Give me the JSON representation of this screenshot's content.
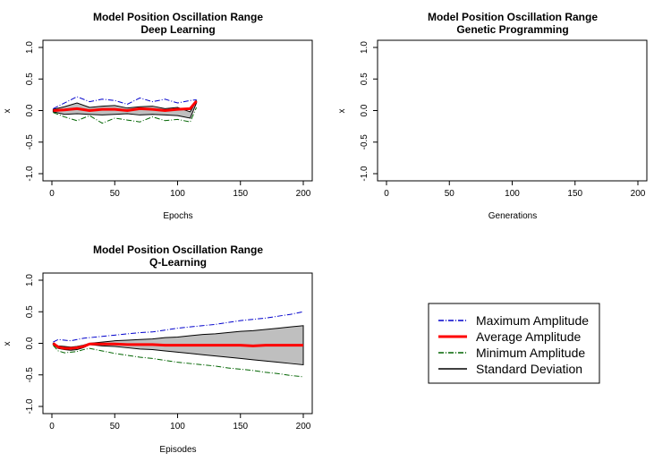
{
  "chart_data": [
    {
      "type": "line",
      "title": "Model Position Oscillation Range",
      "subtitle": "Deep Learning",
      "xlabel": "Epochs",
      "ylabel": "x",
      "xlim": [
        0,
        200
      ],
      "ylim": [
        -1.0,
        1.0
      ],
      "xticks": [
        "0",
        "50",
        "100",
        "150",
        "200"
      ],
      "yticks": [
        "-1.0",
        "-0.5",
        "0.0",
        "0.5",
        "1.0"
      ],
      "x": [
        1,
        10,
        20,
        30,
        40,
        50,
        60,
        70,
        80,
        90,
        100,
        110,
        115
      ],
      "std_band": {
        "upper": [
          0.02,
          0.06,
          0.12,
          0.05,
          0.07,
          0.08,
          0.04,
          0.06,
          0.07,
          0.03,
          0.05,
          -0.02,
          0.15
        ],
        "lower": [
          -0.02,
          -0.06,
          -0.05,
          -0.06,
          -0.07,
          -0.06,
          -0.05,
          -0.07,
          -0.06,
          -0.07,
          -0.08,
          -0.12,
          0.12
        ]
      },
      "series": [
        {
          "name": "Maximum Amplitude",
          "color": "#0000cc",
          "dash": "dashdot",
          "values": [
            0.03,
            0.12,
            0.22,
            0.14,
            0.18,
            0.16,
            0.1,
            0.2,
            0.14,
            0.18,
            0.12,
            0.16,
            0.17
          ]
        },
        {
          "name": "Average Amplitude",
          "color": "#ff0000",
          "dash": "solid",
          "values": [
            0.0,
            0.01,
            0.03,
            0.0,
            0.02,
            0.02,
            0.0,
            0.03,
            0.02,
            0.0,
            0.02,
            0.03,
            0.15
          ]
        },
        {
          "name": "Minimum Amplitude",
          "color": "#006400",
          "dash": "dashdot",
          "values": [
            -0.03,
            -0.1,
            -0.16,
            -0.08,
            -0.2,
            -0.12,
            -0.15,
            -0.18,
            -0.1,
            -0.16,
            -0.14,
            -0.18,
            0.05
          ]
        }
      ]
    },
    {
      "type": "line",
      "title": "Model Position Oscillation Range",
      "subtitle": "Genetic Programming",
      "xlabel": "Generations",
      "ylabel": "x",
      "xlim": [
        0,
        200
      ],
      "ylim": [
        -1.0,
        1.0
      ],
      "xticks": [
        "0",
        "50",
        "100",
        "150",
        "200"
      ],
      "yticks": [
        "-1.0",
        "-0.5",
        "0.0",
        "0.5",
        "1.0"
      ],
      "x": [],
      "series": []
    },
    {
      "type": "line",
      "title": "Model Position Oscillation Range",
      "subtitle": "Q-Learning",
      "xlabel": "Episodes",
      "ylabel": "x",
      "xlim": [
        0,
        200
      ],
      "ylim": [
        -1.0,
        1.0
      ],
      "xticks": [
        "0",
        "50",
        "100",
        "150",
        "200"
      ],
      "yticks": [
        "-1.0",
        "-0.5",
        "0.0",
        "0.5",
        "1.0"
      ],
      "x": [
        1,
        5,
        10,
        15,
        20,
        25,
        30,
        40,
        50,
        60,
        70,
        80,
        90,
        100,
        110,
        120,
        130,
        140,
        150,
        160,
        170,
        180,
        190,
        200
      ],
      "std_band": {
        "upper": [
          0.0,
          -0.04,
          -0.05,
          -0.06,
          -0.05,
          -0.03,
          0.0,
          0.02,
          0.04,
          0.05,
          0.06,
          0.07,
          0.09,
          0.1,
          0.12,
          0.14,
          0.15,
          0.17,
          0.19,
          0.2,
          0.22,
          0.24,
          0.26,
          0.28
        ],
        "lower": [
          -0.02,
          -0.08,
          -0.1,
          -0.11,
          -0.1,
          -0.07,
          -0.02,
          -0.04,
          -0.05,
          -0.07,
          -0.09,
          -0.1,
          -0.12,
          -0.14,
          -0.16,
          -0.18,
          -0.2,
          -0.22,
          -0.24,
          -0.26,
          -0.28,
          -0.3,
          -0.32,
          -0.34
        ]
      },
      "series": [
        {
          "name": "Maximum Amplitude",
          "color": "#0000cc",
          "dash": "dashdot",
          "values": [
            0.02,
            0.06,
            0.05,
            0.04,
            0.06,
            0.08,
            0.09,
            0.11,
            0.13,
            0.15,
            0.17,
            0.18,
            0.21,
            0.24,
            0.26,
            0.28,
            0.3,
            0.33,
            0.36,
            0.38,
            0.4,
            0.43,
            0.46,
            0.5
          ]
        },
        {
          "name": "Average Amplitude",
          "color": "#ff0000",
          "dash": "solid",
          "values": [
            0.0,
            -0.06,
            -0.08,
            -0.08,
            -0.07,
            -0.05,
            -0.01,
            -0.01,
            -0.01,
            -0.02,
            -0.02,
            -0.02,
            -0.03,
            -0.03,
            -0.03,
            -0.03,
            -0.03,
            -0.03,
            -0.03,
            -0.04,
            -0.03,
            -0.03,
            -0.03,
            -0.03
          ]
        },
        {
          "name": "Minimum Amplitude",
          "color": "#006400",
          "dash": "dashdot",
          "values": [
            -0.03,
            -0.12,
            -0.15,
            -0.14,
            -0.13,
            -0.1,
            -0.08,
            -0.12,
            -0.16,
            -0.19,
            -0.22,
            -0.24,
            -0.27,
            -0.3,
            -0.32,
            -0.34,
            -0.36,
            -0.39,
            -0.41,
            -0.43,
            -0.46,
            -0.48,
            -0.51,
            -0.53
          ]
        }
      ]
    }
  ],
  "legend": {
    "items": [
      {
        "label": "Maximum Amplitude",
        "color": "#0000cc",
        "dash": "dashdot"
      },
      {
        "label": "Average Amplitude",
        "color": "#ff0000",
        "dash": "solid"
      },
      {
        "label": "Minimum Amplitude",
        "color": "#006400",
        "dash": "dashdot"
      },
      {
        "label": "Standard Deviation",
        "color": "#000000",
        "dash": "solid"
      }
    ]
  }
}
